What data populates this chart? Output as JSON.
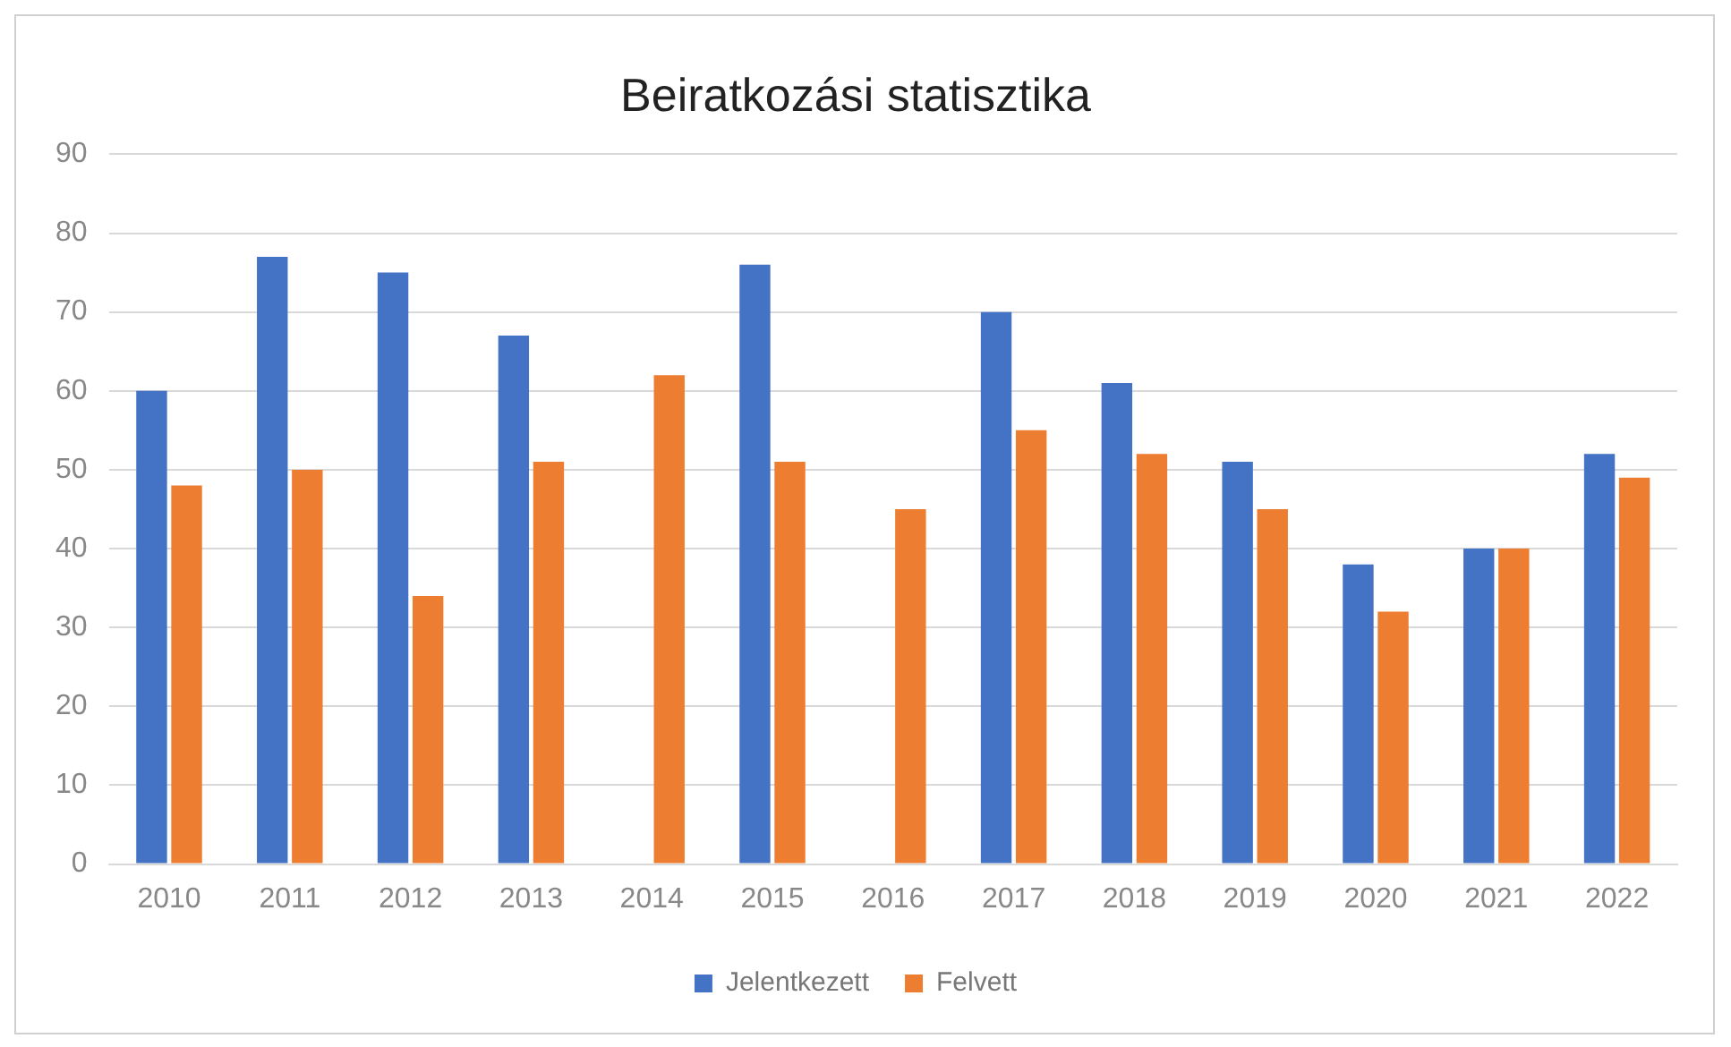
{
  "chart_data": {
    "type": "bar",
    "title": "Beiratkozási statisztika",
    "categories": [
      "2010",
      "2011",
      "2012",
      "2013",
      "2014",
      "2015",
      "2016",
      "2017",
      "2018",
      "2019",
      "2020",
      "2021",
      "2022"
    ],
    "series": [
      {
        "name": "Jelentkezett",
        "color": "#4472c4",
        "values": [
          60,
          77,
          75,
          67,
          null,
          76,
          null,
          70,
          61,
          51,
          38,
          40,
          52
        ]
      },
      {
        "name": "Felvett",
        "color": "#ed7d31",
        "values": [
          48,
          50,
          34,
          51,
          62,
          51,
          45,
          55,
          52,
          45,
          32,
          40,
          49
        ]
      }
    ],
    "ylim": [
      0,
      90
    ],
    "yticks": [
      0,
      10,
      20,
      30,
      40,
      50,
      60,
      70,
      80,
      90
    ],
    "grid": "y",
    "legend": "bottom"
  }
}
